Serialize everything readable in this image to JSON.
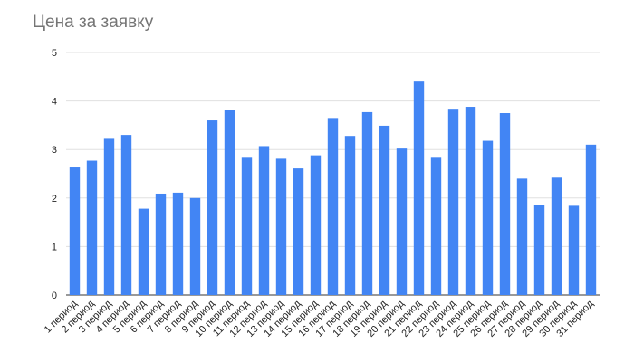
{
  "chart_data": {
    "type": "bar",
    "title": "Цена за заявку",
    "xlabel": "",
    "ylabel": "",
    "ylim": [
      0,
      5
    ],
    "yticks": [
      "0",
      "1",
      "2",
      "3",
      "4",
      "5"
    ],
    "grid": true,
    "legend": "none",
    "bar_color": "#4285f4",
    "categories": [
      "1 период",
      "2 период",
      "3 период",
      "4 период",
      "5 период",
      "6 период",
      "7 период",
      "8 период",
      "9 период",
      "10 период",
      "11 период",
      "12 период",
      "13 период",
      "14 период",
      "15 период",
      "16 период",
      "17 период",
      "18 период",
      "19 период",
      "20 период",
      "21 период",
      "22 период",
      "23 период",
      "24 период",
      "25 период",
      "26 период",
      "27 период",
      "28 период",
      "29 период",
      "30 период",
      "31 период"
    ],
    "values": [
      2.63,
      2.77,
      3.22,
      3.3,
      1.78,
      2.09,
      2.11,
      2.0,
      3.6,
      3.81,
      2.83,
      3.07,
      2.81,
      2.61,
      2.88,
      3.65,
      3.28,
      3.77,
      3.49,
      3.02,
      4.4,
      2.83,
      3.84,
      3.88,
      3.18,
      3.75,
      2.4,
      1.86,
      2.42,
      1.84,
      3.1
    ]
  }
}
